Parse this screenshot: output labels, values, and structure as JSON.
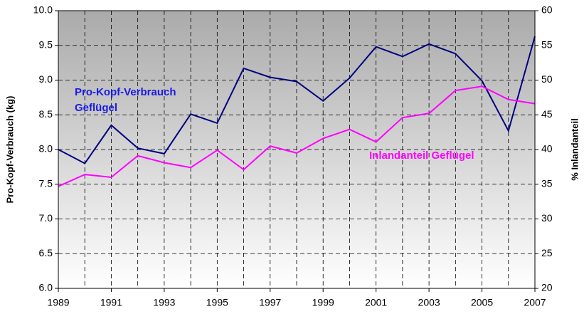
{
  "chart_data": {
    "type": "line",
    "y_label": "Pro-Kopf-Verbrauch (kg)",
    "y2_label": "% Inlandanteil",
    "x": [
      1989,
      1990,
      1991,
      1992,
      1993,
      1994,
      1995,
      1996,
      1997,
      1998,
      1999,
      2000,
      2001,
      2002,
      2003,
      2004,
      2005,
      2006,
      2007
    ],
    "xlim": [
      1989,
      2007
    ],
    "xticks": [
      1989,
      1991,
      1993,
      1995,
      1997,
      1999,
      2001,
      2003,
      2005,
      2007
    ],
    "ylim": [
      6,
      10
    ],
    "yticks": [
      {
        "value": 6,
        "label": "6.0"
      },
      {
        "value": 6.5,
        "label": "6.5"
      },
      {
        "value": 7,
        "label": "7.0"
      },
      {
        "value": 7.5,
        "label": "7.5"
      },
      {
        "value": 8,
        "label": "8.0"
      },
      {
        "value": 8.5,
        "label": "8.5"
      },
      {
        "value": 9,
        "label": "9.0"
      },
      {
        "value": 9.5,
        "label": "9.5"
      },
      {
        "value": 10,
        "label": "10.0"
      }
    ],
    "y2lim": [
      20,
      60
    ],
    "y2ticks": [
      20,
      25,
      30,
      35,
      40,
      45,
      50,
      55,
      60
    ],
    "grid": true,
    "series": [
      {
        "color": "#000080",
        "axis": "y",
        "values": [
          8.0,
          7.8,
          8.35,
          8.02,
          7.94,
          8.51,
          8.38,
          9.17,
          9.04,
          8.98,
          8.7,
          9.03,
          9.48,
          9.34,
          9.52,
          9.38,
          8.99,
          8.27,
          9.63
        ]
      },
      {
        "color": "#ff00ff",
        "axis": "y2",
        "values": [
          34.7,
          36.4,
          36.0,
          39.1,
          38.1,
          37.4,
          39.9,
          37.1,
          40.5,
          39.5,
          41.6,
          42.9,
          41.1,
          44.6,
          45.2,
          48.5,
          49.1,
          47.2,
          46.6
        ]
      }
    ],
    "annotations": [
      {
        "lines": [
          "Pro-Kopf-Verbrauch",
          "Geflügel"
        ],
        "color": "#1a1ae6"
      },
      {
        "lines": [
          "Inlandanteil Geflügel"
        ],
        "color": "#ff00ff"
      }
    ]
  }
}
